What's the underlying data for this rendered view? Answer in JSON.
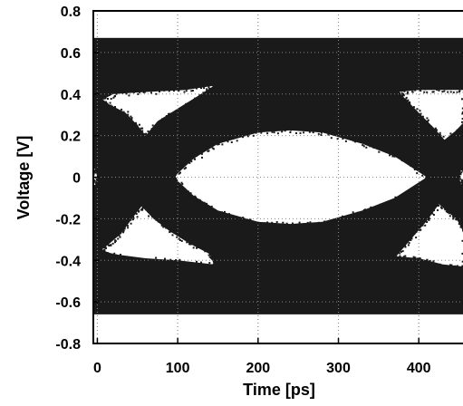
{
  "chart_data": {
    "type": "scatter",
    "plot_kind": "eye diagram",
    "xlabel": "Time [ps]",
    "ylabel": "Voltage [V]",
    "xlim": [
      -5,
      455
    ],
    "ylim": [
      -0.8,
      0.8
    ],
    "xticks": [
      0,
      100,
      200,
      300,
      400
    ],
    "xtick_labels": [
      "0",
      "100",
      "200",
      "300",
      "400"
    ],
    "yticks": [
      -0.8,
      -0.6,
      -0.4,
      -0.2,
      0,
      0.2,
      0.4,
      0.6,
      0.8
    ],
    "ytick_labels": [
      "-0.8",
      "-0.6",
      "-0.4",
      "-0.2",
      "0",
      "0.2",
      "0.4",
      "0.6",
      "0.8"
    ],
    "grid": true,
    "grid_style": "dotted",
    "marker_color": "#1a1a1a",
    "background_color": "#ffffff",
    "eye_period_ps": 333,
    "eye_levels_V": {
      "high": 0.67,
      "low": -0.66,
      "mid": 0.0
    },
    "eye_openings": [
      {
        "label": "center",
        "x_range": [
          95,
          410
        ],
        "top": [
          [
            95,
            0.0
          ],
          [
            120,
            0.09
          ],
          [
            150,
            0.16
          ],
          [
            200,
            0.215
          ],
          [
            240,
            0.225
          ],
          [
            280,
            0.215
          ],
          [
            330,
            0.16
          ],
          [
            370,
            0.1
          ],
          [
            410,
            0.0
          ]
        ],
        "bottom": [
          [
            95,
            0.0
          ],
          [
            120,
            -0.09
          ],
          [
            150,
            -0.16
          ],
          [
            200,
            -0.215
          ],
          [
            240,
            -0.225
          ],
          [
            280,
            -0.215
          ],
          [
            330,
            -0.16
          ],
          [
            370,
            -0.1
          ],
          [
            410,
            0.0
          ]
        ]
      },
      {
        "label": "upper-left",
        "outline": [
          [
            5,
            0.37
          ],
          [
            20,
            0.4
          ],
          [
            60,
            0.41
          ],
          [
            110,
            0.42
          ],
          [
            145,
            0.44
          ],
          [
            125,
            0.39
          ],
          [
            100,
            0.33
          ],
          [
            75,
            0.27
          ],
          [
            60,
            0.2
          ],
          [
            50,
            0.25
          ],
          [
            35,
            0.31
          ],
          [
            15,
            0.35
          ]
        ]
      },
      {
        "label": "lower-left",
        "outline": [
          [
            5,
            -0.35
          ],
          [
            20,
            -0.37
          ],
          [
            60,
            -0.39
          ],
          [
            100,
            -0.4
          ],
          [
            145,
            -0.42
          ],
          [
            140,
            -0.37
          ],
          [
            115,
            -0.32
          ],
          [
            90,
            -0.26
          ],
          [
            70,
            -0.2
          ],
          [
            55,
            -0.14
          ],
          [
            45,
            -0.19
          ],
          [
            30,
            -0.27
          ],
          [
            15,
            -0.32
          ]
        ]
      },
      {
        "label": "upper-right",
        "outline": [
          [
            375,
            0.41
          ],
          [
            400,
            0.42
          ],
          [
            430,
            0.42
          ],
          [
            455,
            0.42
          ],
          [
            455,
            0.26
          ],
          [
            445,
            0.22
          ],
          [
            432,
            0.18
          ],
          [
            418,
            0.24
          ],
          [
            400,
            0.31
          ],
          [
            385,
            0.37
          ]
        ]
      },
      {
        "label": "lower-right",
        "outline": [
          [
            372,
            -0.38
          ],
          [
            400,
            -0.39
          ],
          [
            430,
            -0.42
          ],
          [
            455,
            -0.43
          ],
          [
            455,
            -0.26
          ],
          [
            447,
            -0.2
          ],
          [
            440,
            -0.18
          ],
          [
            425,
            -0.13
          ],
          [
            410,
            -0.21
          ],
          [
            390,
            -0.3
          ]
        ]
      },
      {
        "label": "left-edge",
        "outline": [
          [
            -5,
            0.04
          ],
          [
            -3,
            0.04
          ],
          [
            0,
            0.0
          ],
          [
            -3,
            -0.04
          ],
          [
            -5,
            -0.04
          ]
        ]
      },
      {
        "label": "right-edge",
        "outline": [
          [
            455,
            0.04
          ],
          [
            453,
            0.04
          ],
          [
            450,
            0.0
          ],
          [
            453,
            -0.04
          ],
          [
            455,
            -0.04
          ]
        ]
      }
    ]
  }
}
